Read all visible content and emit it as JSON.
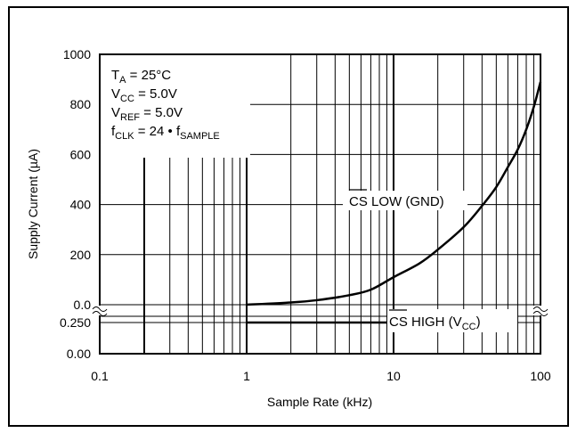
{
  "chart_data": {
    "type": "line",
    "x_scale": "log",
    "xlim": [
      0.1,
      100
    ],
    "xlabel": "Sample Rate (kHz)",
    "ylabel": "Supply Current (µA)",
    "x_ticks": [
      "0.1",
      "1",
      "10",
      "100"
    ],
    "y_ticks_upper": [
      "1000",
      "800",
      "600",
      "400",
      "200",
      "0.0"
    ],
    "y_ticks_lower": [
      "0.250",
      "0.00"
    ],
    "upper_ylim": [
      0,
      1000
    ],
    "lower_ylim": [
      0,
      0.3
    ],
    "grid": true,
    "conditions": [
      {
        "main": "T",
        "sub": "A",
        "rest": " = 25°C"
      },
      {
        "main": "V",
        "sub": "CC",
        "rest": " = 5.0V"
      },
      {
        "main": "V",
        "sub": "REF",
        "rest": " = 5.0V"
      },
      {
        "main": "f",
        "sub": "CLK",
        "rest": " = 24 • f",
        "sub2": "SAMPLE"
      }
    ],
    "series": [
      {
        "name": "CS LOW (GND)",
        "label_over": "CS",
        "label_rest": " LOW (GND)",
        "x": [
          1,
          2,
          3,
          5,
          7,
          10,
          15,
          20,
          30,
          40,
          50,
          60,
          70,
          80,
          90,
          100
        ],
        "y": [
          0,
          9,
          18,
          38,
          60,
          110,
          165,
          220,
          310,
          395,
          470,
          550,
          620,
          700,
          790,
          890
        ]
      },
      {
        "name": "CS HIGH (VCC)",
        "label_over": "CS",
        "label_rest": " HIGH (V",
        "label_sub": "CC",
        "label_end": ")",
        "x": [
          1,
          60
        ],
        "y": [
          0.25,
          0.25
        ]
      }
    ]
  }
}
